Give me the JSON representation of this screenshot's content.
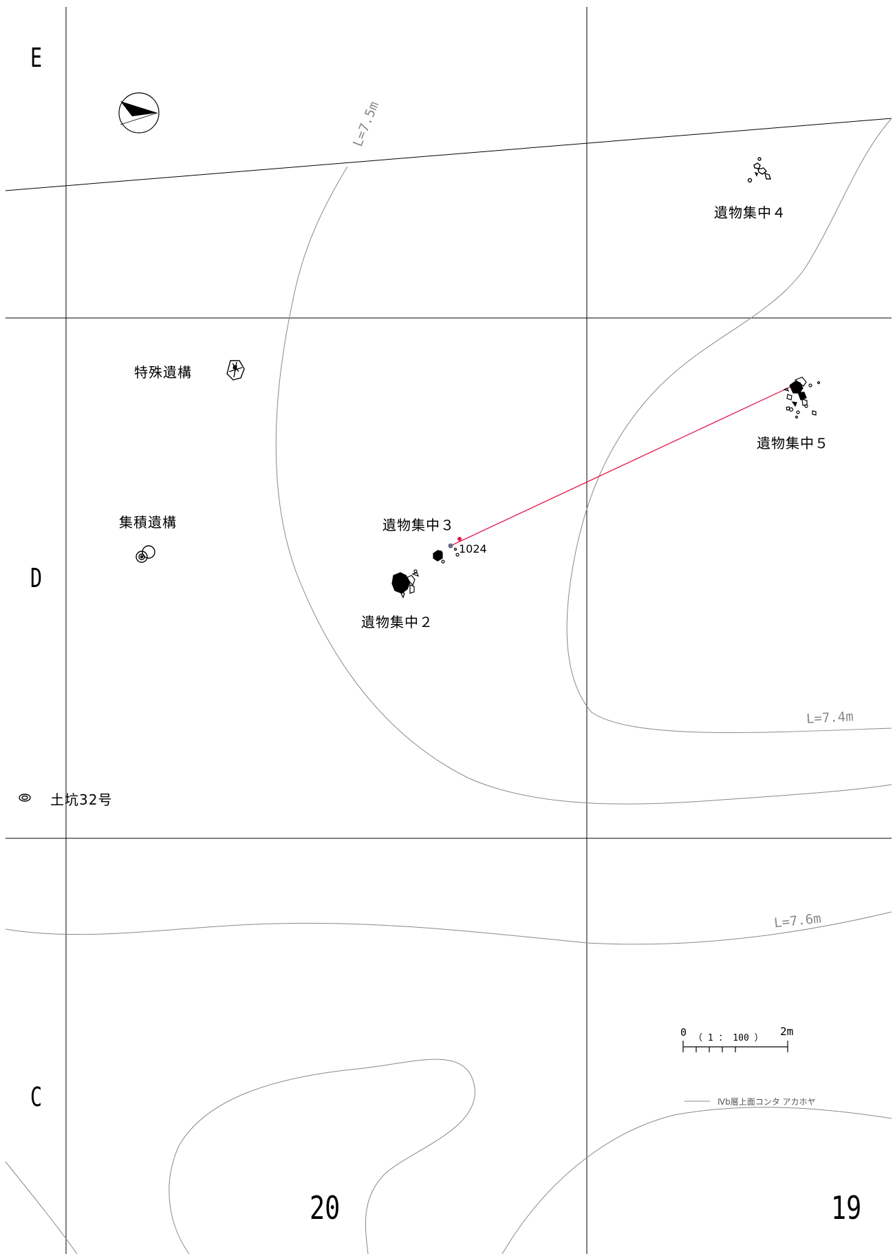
{
  "grid": {
    "rows": [
      "E",
      "D",
      "C"
    ],
    "columns": [
      "20",
      "19"
    ]
  },
  "contours": [
    {
      "label": "L=7.5m"
    },
    {
      "label": "L=7.4m"
    },
    {
      "label": "L=7.6m"
    }
  ],
  "features": {
    "concentration_4": "遺物集中４",
    "concentration_5": "遺物集中５",
    "concentration_3": "遺物集中３",
    "concentration_2": "遺物集中２",
    "special_feature": "特殊遺構",
    "accumulation_feature": "集積遺構",
    "pit_32": "土坑32号",
    "artifact_number": "1024"
  },
  "scale_bar": {
    "zero": "0",
    "ratio": "（ 1 ： 100 ）",
    "max": "2m"
  },
  "legend": {
    "text": "Ⅳb層上面コンタ アカホヤ"
  },
  "colors": {
    "grid": "#000000",
    "contour": "#888888",
    "refit_line": "#e4174b"
  }
}
